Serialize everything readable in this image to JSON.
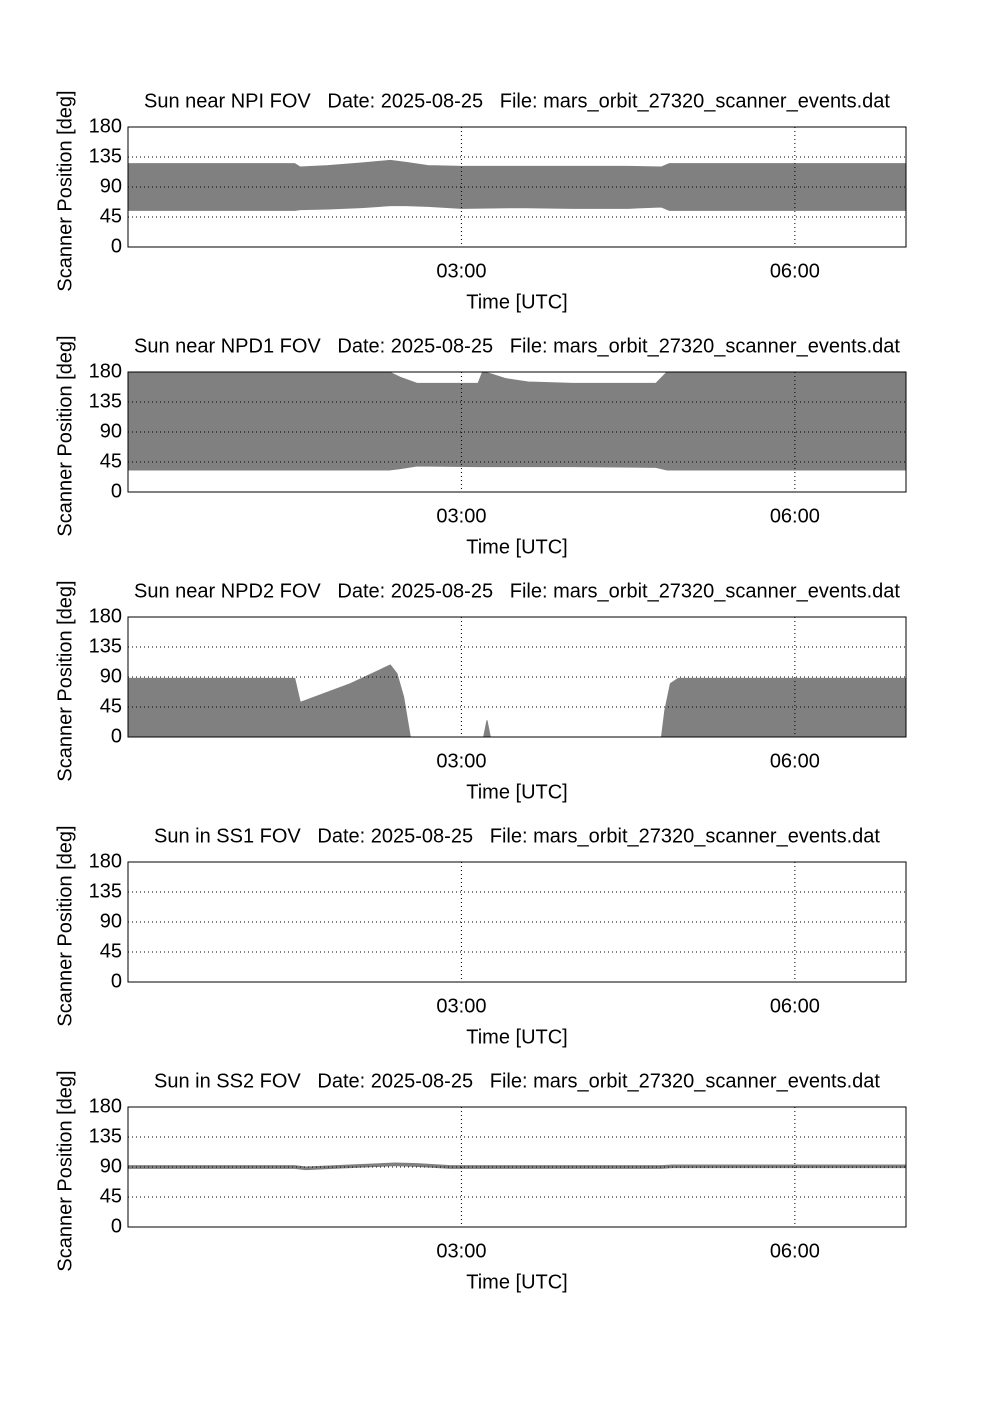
{
  "chart_data": [
    {
      "type": "band",
      "title": "Sun near NPI FOV   Date: 2025-08-25   File: mars_orbit_27320_scanner_events.dat",
      "xlabel": "Time [UTC]",
      "ylabel": "Scanner Position [deg]",
      "x": [
        0,
        1.5,
        1.55,
        1.8,
        2.1,
        2.36,
        2.5,
        2.7,
        3.0,
        3.5,
        4.0,
        4.5,
        4.8,
        4.87,
        7
      ],
      "upper": [
        125,
        125,
        120,
        122,
        126,
        130,
        127,
        122,
        121,
        121,
        121,
        121,
        120,
        125,
        125
      ],
      "lower": [
        55,
        55,
        56,
        57,
        59,
        62,
        62,
        61,
        58,
        59,
        58,
        58,
        60,
        55,
        55
      ],
      "color": "#808080",
      "xlim": [
        0,
        7
      ],
      "xticks": [
        {
          "value": 3,
          "label": "03:00"
        },
        {
          "value": 6,
          "label": "06:00"
        }
      ],
      "ylim": [
        0,
        180
      ],
      "yticks": [
        0,
        45,
        90,
        135,
        180
      ],
      "grid": true
    },
    {
      "type": "band",
      "title": "Sun near NPD1 FOV   Date: 2025-08-25   File: mars_orbit_27320_scanner_events.dat",
      "xlabel": "Time [UTC]",
      "ylabel": "Scanner Position [deg]",
      "x": [
        0,
        2.35,
        2.45,
        2.6,
        3.15,
        3.19,
        3.25,
        3.4,
        3.6,
        4.0,
        4.75,
        4.85,
        7
      ],
      "upper": [
        180,
        180,
        172,
        163,
        163,
        180,
        178,
        170,
        165,
        163,
        163,
        180,
        180
      ],
      "lower": [
        33,
        33,
        35,
        39,
        38,
        38,
        38,
        38,
        38,
        38,
        37,
        33,
        33
      ],
      "color": "#808080",
      "xlim": [
        0,
        7
      ],
      "xticks": [
        {
          "value": 3,
          "label": "03:00"
        },
        {
          "value": 6,
          "label": "06:00"
        }
      ],
      "ylim": [
        0,
        180
      ],
      "yticks": [
        0,
        45,
        90,
        135,
        180
      ],
      "grid": true
    },
    {
      "type": "band",
      "title": "Sun near NPD2 FOV   Date: 2025-08-25   File: mars_orbit_27320_scanner_events.dat",
      "xlabel": "Time [UTC]",
      "ylabel": "Scanner Position [deg]",
      "x": [
        0,
        1.5,
        1.55,
        2.0,
        2.36,
        2.42,
        2.48,
        2.52,
        2.54,
        3.2,
        3.23,
        3.26,
        4.8,
        4.83,
        4.88,
        4.95,
        7
      ],
      "upper": [
        88,
        88,
        52,
        80,
        108,
        95,
        60,
        20,
        0,
        0,
        25,
        0,
        0,
        40,
        80,
        88,
        88
      ],
      "lower": [
        0,
        0,
        0,
        0,
        0,
        0,
        0,
        0,
        0,
        0,
        0,
        0,
        0,
        0,
        0,
        0,
        0
      ],
      "color": "#808080",
      "xlim": [
        0,
        7
      ],
      "xticks": [
        {
          "value": 3,
          "label": "03:00"
        },
        {
          "value": 6,
          "label": "06:00"
        }
      ],
      "ylim": [
        0,
        180
      ],
      "yticks": [
        0,
        45,
        90,
        135,
        180
      ],
      "grid": true
    },
    {
      "type": "band",
      "title": "Sun in SS1 FOV   Date: 2025-08-25   File: mars_orbit_27320_scanner_events.dat",
      "xlabel": "Time [UTC]",
      "ylabel": "Scanner Position [deg]",
      "x": [],
      "upper": [],
      "lower": [],
      "color": "#808080",
      "xlim": [
        0,
        7
      ],
      "xticks": [
        {
          "value": 3,
          "label": "03:00"
        },
        {
          "value": 6,
          "label": "06:00"
        }
      ],
      "ylim": [
        0,
        180
      ],
      "yticks": [
        0,
        45,
        90,
        135,
        180
      ],
      "grid": true
    },
    {
      "type": "band",
      "title": "Sun in SS2 FOV   Date: 2025-08-25   File: mars_orbit_27320_scanner_events.dat",
      "xlabel": "Time [UTC]",
      "ylabel": "Scanner Position [deg]",
      "x": [
        0,
        1.5,
        1.6,
        2.0,
        2.4,
        2.6,
        2.9,
        4.8,
        4.9,
        7
      ],
      "upper": [
        92,
        92,
        90,
        93,
        96,
        95,
        92,
        92,
        93,
        93
      ],
      "lower": [
        88,
        88,
        86,
        89,
        92,
        91,
        88,
        88,
        89,
        89
      ],
      "color": "#808080",
      "xlim": [
        0,
        7
      ],
      "xticks": [
        {
          "value": 3,
          "label": "03:00"
        },
        {
          "value": 6,
          "label": "06:00"
        }
      ],
      "ylim": [
        0,
        180
      ],
      "yticks": [
        0,
        45,
        90,
        135,
        180
      ],
      "grid": true
    }
  ]
}
